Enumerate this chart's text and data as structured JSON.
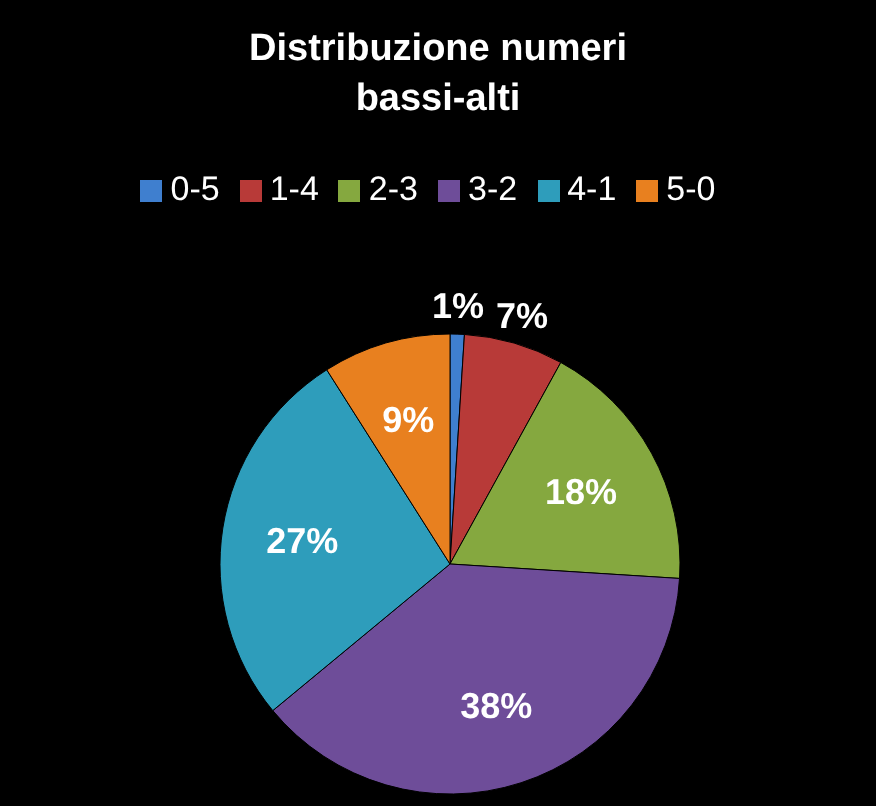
{
  "chart_data": {
    "type": "pie",
    "title": "Distribuzione numeri bassi-alti",
    "categories": [
      "0-5",
      "1-4",
      "2-3",
      "3-2",
      "4-1",
      "5-0"
    ],
    "values": [
      1,
      7,
      18,
      38,
      27,
      9
    ],
    "value_labels": [
      "1%",
      "7%",
      "18%",
      "38%",
      "27%",
      "9%"
    ],
    "colors": [
      "#3f7fcf",
      "#b83a38",
      "#85a83f",
      "#6e4d99",
      "#2e9dbb",
      "#e8801f"
    ],
    "legend": "top"
  }
}
